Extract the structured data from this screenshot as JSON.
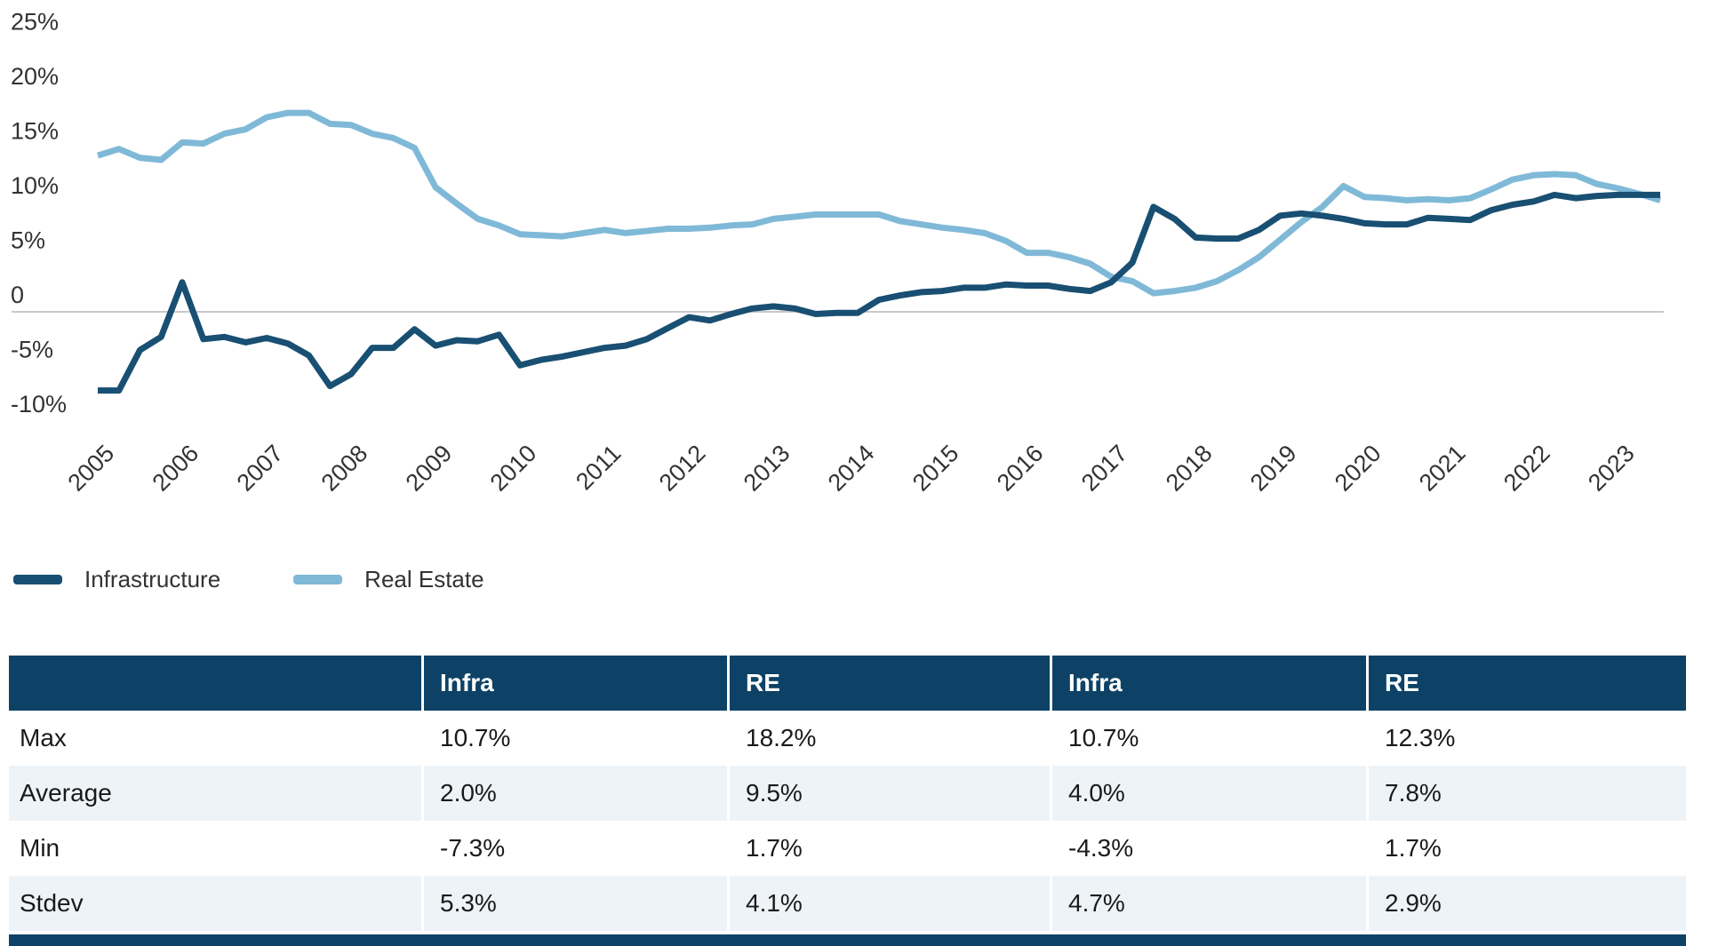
{
  "colors": {
    "infrastructure_line": "#184f72",
    "real_estate_line": "#7fb9d7",
    "table_header_bg": "#0d4266",
    "table_zebra_bg": "#eef3f7",
    "zero_gridline": "#c9c9c9",
    "axis_text": "#333333"
  },
  "chart_data": {
    "type": "line",
    "title": "",
    "xlabel": "",
    "ylabel": "",
    "ylim": [
      -10,
      25
    ],
    "grid": "zero-line-only",
    "legend_position": "bottom-left",
    "x_unit": "quarterly from 2005 to 2023 Q3",
    "y_ticks": [
      {
        "label": "25%",
        "value": 25
      },
      {
        "label": "20%",
        "value": 20
      },
      {
        "label": "15%",
        "value": 15
      },
      {
        "label": "10%",
        "value": 10
      },
      {
        "label": "5%",
        "value": 5
      },
      {
        "label": "0",
        "value": 0
      },
      {
        "label": "-5%",
        "value": -5
      },
      {
        "label": "-10%",
        "value": -10
      }
    ],
    "x_tick_years": [
      2005,
      2006,
      2007,
      2008,
      2009,
      2010,
      2011,
      2012,
      2013,
      2014,
      2015,
      2016,
      2017,
      2018,
      2019,
      2020,
      2021,
      2022,
      2023
    ],
    "series": [
      {
        "name": "Infrastructure",
        "color": "#184f72",
        "values": [
          -7.2,
          -7.2,
          -3.5,
          -2.3,
          2.7,
          -2.5,
          -2.3,
          -2.8,
          -2.4,
          -2.9,
          -4.0,
          -6.8,
          -5.7,
          -3.3,
          -3.3,
          -1.6,
          -3.1,
          -2.6,
          -2.7,
          -2.1,
          -4.9,
          -4.4,
          -4.1,
          -3.7,
          -3.3,
          -3.1,
          -2.5,
          -1.5,
          -0.5,
          -0.8,
          -0.2,
          0.3,
          0.5,
          0.3,
          -0.2,
          -0.1,
          -0.1,
          1.1,
          1.5,
          1.8,
          1.9,
          2.2,
          2.2,
          2.5,
          2.4,
          2.4,
          2.1,
          1.9,
          2.7,
          4.5,
          9.6,
          8.5,
          6.8,
          6.7,
          6.7,
          7.5,
          8.8,
          9.0,
          8.8,
          8.5,
          8.1,
          8.0,
          8.0,
          8.6,
          8.5,
          8.4,
          9.3,
          9.8,
          10.1,
          10.7,
          10.4,
          10.6,
          10.7,
          10.7,
          10.7
        ]
      },
      {
        "name": "Real Estate",
        "color": "#7fb9d7",
        "values": [
          14.3,
          14.9,
          14.1,
          13.9,
          15.5,
          15.4,
          16.3,
          16.7,
          17.8,
          18.2,
          18.2,
          17.2,
          17.1,
          16.3,
          15.9,
          15.0,
          11.4,
          9.9,
          8.5,
          7.9,
          7.1,
          7.0,
          6.9,
          7.2,
          7.5,
          7.2,
          7.4,
          7.6,
          7.6,
          7.7,
          7.9,
          8.0,
          8.5,
          8.7,
          8.9,
          8.9,
          8.9,
          8.9,
          8.3,
          8.0,
          7.7,
          7.5,
          7.2,
          6.5,
          5.4,
          5.4,
          5.0,
          4.4,
          3.2,
          2.8,
          1.7,
          1.9,
          2.2,
          2.8,
          3.8,
          5.0,
          6.6,
          8.2,
          9.6,
          11.5,
          10.5,
          10.4,
          10.2,
          10.3,
          10.2,
          10.4,
          11.2,
          12.1,
          12.5,
          12.6,
          12.5,
          11.7,
          11.3,
          10.8,
          10.2
        ]
      }
    ]
  },
  "legend": {
    "items": [
      {
        "label": "Infrastructure",
        "color": "#184f72"
      },
      {
        "label": "Real Estate",
        "color": "#7fb9d7"
      }
    ]
  },
  "table": {
    "header": [
      "",
      "Infra",
      "RE",
      "Infra",
      "RE"
    ],
    "rows": [
      {
        "label": "Max",
        "values": [
          "10.7%",
          "18.2%",
          "10.7%",
          "12.3%"
        ]
      },
      {
        "label": "Average",
        "values": [
          "2.0%",
          "9.5%",
          "4.0%",
          "7.8%"
        ]
      },
      {
        "label": "Min",
        "values": [
          "-7.3%",
          "1.7%",
          "-4.3%",
          "1.7%"
        ]
      },
      {
        "label": "Stdev",
        "values": [
          "5.3%",
          "4.1%",
          "4.7%",
          "2.9%"
        ]
      }
    ]
  }
}
